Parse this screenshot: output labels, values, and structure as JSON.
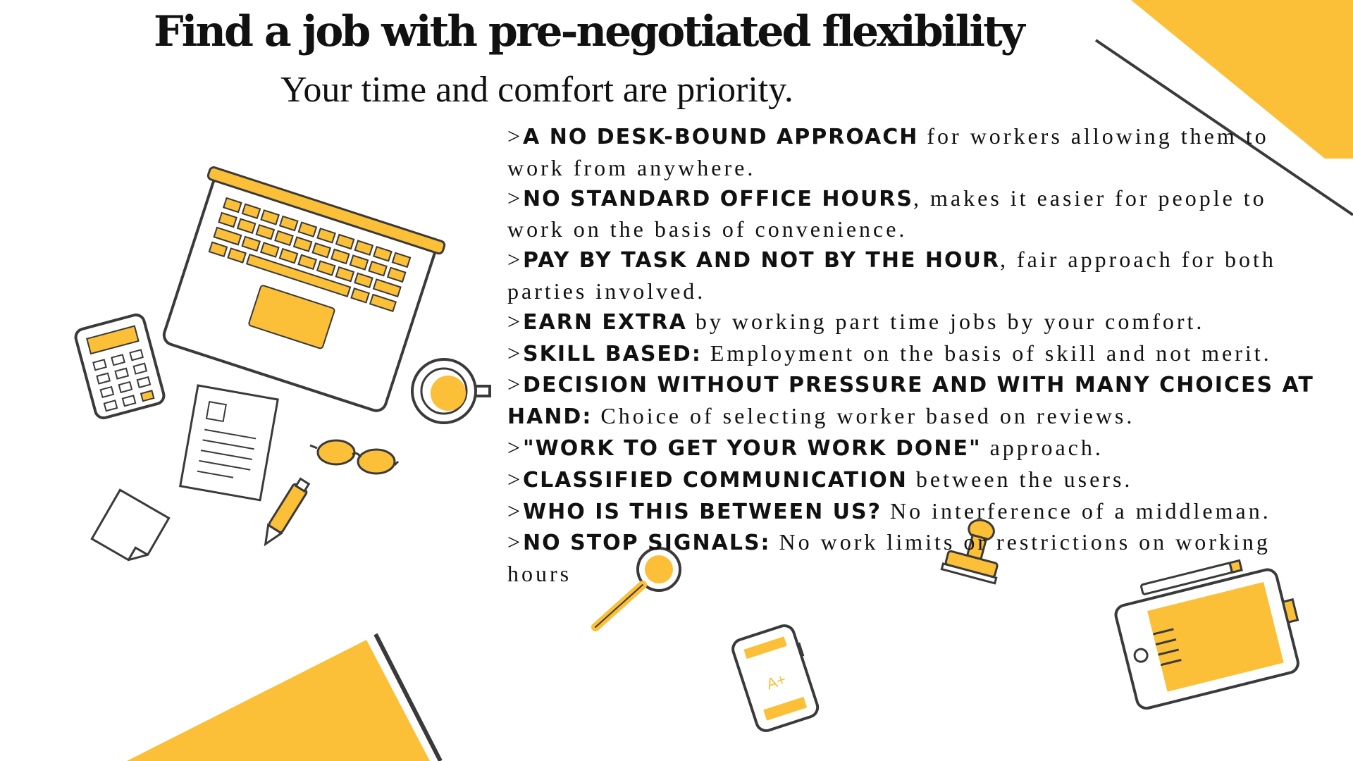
{
  "slide": {
    "title": "Find a job with pre-negotiated flexibility",
    "subtitle": "Your time and comfort are priority.",
    "calculator_label": "A+",
    "points": [
      {
        "prefix": ">",
        "highlight": "A no desk-bound approach",
        "text": " for workers allowing them to work from anywhere."
      },
      {
        "prefix": ">",
        "highlight": "No standard office hours",
        "text": ", makes it easier for people to work on the basis of convenience."
      },
      {
        "prefix": ">",
        "highlight": "Pay by task and not by the hour",
        "text": ", fair approach for both parties involved."
      },
      {
        "prefix": ">",
        "highlight": "Earn extra",
        "text": " by working part time jobs by your comfort."
      },
      {
        "prefix": ">",
        "highlight": "Skill based:",
        "text": " Employment on the basis of skill and not merit."
      },
      {
        "prefix": ">",
        "highlight": "Decision without pressure and with many choices at hand:",
        "text": " Choice of selecting worker based on reviews."
      },
      {
        "prefix": ">",
        "highlight": "\"Work to get your work done\"",
        "text": " approach."
      },
      {
        "prefix": ">",
        "highlight": "Classified communication",
        "text": " between the users."
      },
      {
        "prefix": ">",
        "highlight": "Who is this between us?",
        "text": " No interference of a middleman."
      },
      {
        "prefix": ">",
        "highlight": "No stop signals:",
        "text": " No work limits or restrictions on working hours"
      }
    ]
  },
  "colors": {
    "accent": "#FBBF38",
    "outline": "#3a3a3a",
    "text": "#111111"
  },
  "icons": [
    "laptop-icon",
    "calculator-icon",
    "document-icon",
    "sticky-note-icon",
    "glasses-icon",
    "pen-icon",
    "coffee-cup-icon",
    "magnifier-icon",
    "stamp-icon",
    "phone-icon",
    "tablet-icon"
  ]
}
